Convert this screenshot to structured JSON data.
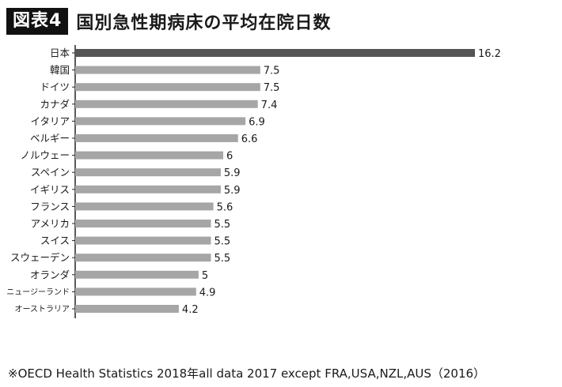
{
  "figure": {
    "badge": "図表4",
    "title": "国別急性期病床の平均在院日数"
  },
  "footnote": "※OECD Health Statistics 2018年all data 2017 except FRA,USA,NZL,AUS（2016）",
  "chart_data": {
    "type": "bar",
    "orientation": "horizontal",
    "title": "国別急性期病床の平均在院日数",
    "xlabel": "",
    "ylabel": "",
    "xlim": [
      0,
      16.2
    ],
    "grid": false,
    "legend": "none",
    "categories": [
      "日本",
      "韓国",
      "ドイツ",
      "カナダ",
      "イタリア",
      "ベルギー",
      "ノルウェー",
      "スペイン",
      "イギリス",
      "フランス",
      "アメリカ",
      "スイス",
      "スウェーデン",
      "オランダ",
      "ニュージーランド",
      "オーストラリア"
    ],
    "values": [
      16.2,
      7.5,
      7.5,
      7.4,
      6.9,
      6.6,
      6,
      5.9,
      5.9,
      5.6,
      5.5,
      5.5,
      5.5,
      5,
      4.9,
      4.2
    ],
    "value_labels": [
      "16.2",
      "7.5",
      "7.5",
      "7.4",
      "6.9",
      "6.6",
      "6",
      "5.9",
      "5.9",
      "5.6",
      "5.5",
      "5.5",
      "5.5",
      "5",
      "4.9",
      "4.2"
    ],
    "highlight_index": 0,
    "colors": {
      "highlight": "#555555",
      "default": "#a6a6a6",
      "axis": "#222222",
      "text": "#1a1a1a"
    }
  }
}
